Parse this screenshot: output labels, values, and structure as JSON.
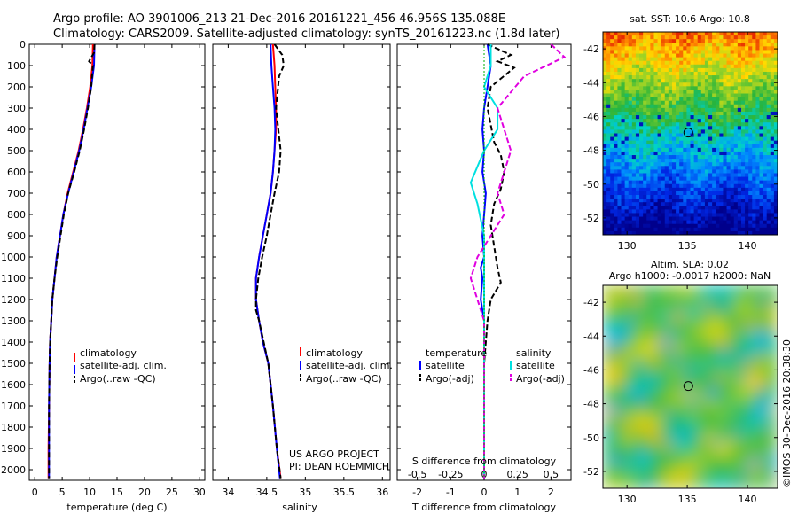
{
  "header": {
    "line1": "Argo profile: AO 3901006_213 21-Dec-2016 20161221_456 46.956S 135.088E",
    "line2": "Climatology: CARS2009. Satellite-adjusted climatology: synTS_20161223.nc (1.8d later)"
  },
  "credits": {
    "project": "US ARGO PROJECT",
    "pi": "PI: DEAN ROEMMICH",
    "vertical": "©IMOS 30-Dec-2016 20:38:30"
  },
  "colors": {
    "climatology": "#ff0000",
    "satellite": "#0000ff",
    "argo": "#000000",
    "sal_satellite": "#00e0e0",
    "sal_argo": "#e000e0"
  },
  "chart_data": [
    {
      "id": "temperature",
      "type": "line",
      "xlabel": "temperature (deg C)",
      "ylabel": "",
      "xlim": [
        -1,
        31
      ],
      "ylim": [
        2050,
        0
      ],
      "xticks": [
        "0",
        "5",
        "10",
        "15",
        "20",
        "25",
        "30"
      ],
      "yticks": [
        "0",
        "100",
        "200",
        "300",
        "400",
        "500",
        "600",
        "700",
        "800",
        "900",
        "1000",
        "1100",
        "1200",
        "1300",
        "1400",
        "1500",
        "1600",
        "1700",
        "1800",
        "1900",
        "2000"
      ],
      "legend": [
        "climatology",
        "satellite-adj. clim.",
        "Argo(..raw -QC)"
      ],
      "legend_position": "bottom-right",
      "series": [
        {
          "name": "climatology",
          "style": "solid",
          "color": "#ff0000",
          "x": [
            10.6,
            10.5,
            10.1,
            9.5,
            8.8,
            8.0,
            7.0,
            6.0,
            5.2,
            4.6,
            4.0,
            3.6,
            3.2,
            3.0,
            2.8,
            2.7,
            2.6,
            2.5,
            2.5
          ],
          "y": [
            0,
            100,
            200,
            300,
            400,
            500,
            600,
            700,
            800,
            900,
            1000,
            1100,
            1200,
            1300,
            1400,
            1500,
            1700,
            1900,
            2040
          ]
        },
        {
          "name": "satellite-adj. clim.",
          "style": "solid",
          "color": "#0000ff",
          "x": [
            10.9,
            10.8,
            10.3,
            9.6,
            8.9,
            8.1,
            7.1,
            6.1,
            5.2,
            4.6,
            4.0,
            3.6,
            3.2,
            3.0,
            2.8,
            2.7,
            2.6,
            2.6,
            2.6
          ],
          "y": [
            0,
            100,
            200,
            300,
            400,
            500,
            600,
            700,
            800,
            900,
            1000,
            1100,
            1200,
            1300,
            1400,
            1500,
            1700,
            1900,
            2040
          ]
        },
        {
          "name": "Argo(..raw -QC)",
          "style": "dashed",
          "color": "#000000",
          "x": [
            10.9,
            10.8,
            9.9,
            10.6,
            10.3,
            9.7,
            9.0,
            8.2,
            7.2,
            6.1,
            5.3,
            4.7,
            4.1,
            3.6,
            3.2,
            3.0,
            2.8,
            2.7,
            2.6,
            2.6,
            2.6
          ],
          "y": [
            0,
            40,
            80,
            100,
            200,
            300,
            400,
            500,
            600,
            700,
            800,
            900,
            1000,
            1100,
            1200,
            1300,
            1400,
            1500,
            1700,
            1900,
            2040
          ]
        }
      ]
    },
    {
      "id": "salinity",
      "type": "line",
      "xlabel": "salinity",
      "ylabel": "",
      "xlim": [
        33.8,
        36.1
      ],
      "ylim": [
        2050,
        0
      ],
      "xticks": [
        "34",
        "34.5",
        "35",
        "35.5",
        "36"
      ],
      "legend": [
        "climatology",
        "satellite-adj. clim.",
        "Argo(..raw -QC)"
      ],
      "legend_position": "bottom-right",
      "series": [
        {
          "name": "climatology",
          "style": "solid",
          "color": "#ff0000",
          "x": [
            34.58,
            34.6,
            34.61,
            34.62,
            34.62,
            34.6,
            34.58,
            34.55,
            34.5,
            34.45,
            34.4,
            34.36,
            34.36,
            34.4,
            34.45,
            34.52,
            34.58,
            34.63,
            34.68
          ],
          "y": [
            0,
            100,
            200,
            300,
            400,
            500,
            600,
            700,
            800,
            900,
            1000,
            1100,
            1200,
            1300,
            1400,
            1500,
            1700,
            1900,
            2040
          ]
        },
        {
          "name": "satellite-adj. clim.",
          "style": "solid",
          "color": "#0000ff",
          "x": [
            34.55,
            34.56,
            34.58,
            34.6,
            34.61,
            34.6,
            34.58,
            34.55,
            34.5,
            34.45,
            34.4,
            34.36,
            34.36,
            34.4,
            34.45,
            34.52,
            34.58,
            34.63,
            34.67
          ],
          "y": [
            0,
            100,
            200,
            300,
            400,
            500,
            600,
            700,
            800,
            900,
            1000,
            1100,
            1200,
            1300,
            1400,
            1500,
            1700,
            1900,
            2040
          ]
        },
        {
          "name": "Argo(..raw -QC)",
          "style": "dashed",
          "color": "#000000",
          "x": [
            34.6,
            34.7,
            34.72,
            34.66,
            34.62,
            34.68,
            34.66,
            34.6,
            34.55,
            34.5,
            34.44,
            34.39,
            34.36,
            34.36,
            34.4,
            34.46,
            34.52,
            34.58,
            34.63,
            34.68
          ],
          "y": [
            0,
            50,
            100,
            150,
            300,
            500,
            600,
            700,
            800,
            900,
            1000,
            1100,
            1200,
            1250,
            1300,
            1400,
            1500,
            1700,
            1900,
            2040
          ]
        }
      ]
    },
    {
      "id": "difference",
      "type": "line",
      "xlabel": "T difference from climatology",
      "xlabel_top": "S difference from climatology",
      "xlim": [
        -2.6,
        2.6
      ],
      "ylim": [
        2050,
        0
      ],
      "xticks": [
        "-2",
        "-1",
        "0",
        "1",
        "2"
      ],
      "xticks_top": [
        "-0.5",
        "-0.25",
        "0",
        "0.25",
        "0.5"
      ],
      "legend_headers": [
        "temperature",
        "salinity"
      ],
      "legend": [
        "satellite",
        "Argo(-adj)",
        "satellite",
        "Argo(-adj)"
      ],
      "series": [
        {
          "name": "satellite",
          "group": "temperature",
          "style": "solid",
          "color": "#0000ff",
          "x": [
            0.1,
            0.2,
            0.1,
            0.0,
            -0.05,
            0.0,
            -0.05,
            0.05,
            0.0,
            -0.05,
            0.0,
            -0.1,
            -0.05,
            -0.1,
            0.0,
            0.0,
            0.0,
            0.0
          ],
          "y": [
            0,
            100,
            200,
            300,
            400,
            500,
            600,
            700,
            800,
            900,
            1000,
            1050,
            1100,
            1200,
            1300,
            1500,
            1800,
            2040
          ]
        },
        {
          "name": "Argo(-adj)",
          "group": "temperature",
          "style": "dashed",
          "color": "#000000",
          "x": [
            0.1,
            0.8,
            0.4,
            0.9,
            0.2,
            0.1,
            0.3,
            0.5,
            0.6,
            0.5,
            0.3,
            0.2,
            0.4,
            0.5,
            0.2,
            0.1,
            0.0,
            0.0,
            0.0
          ],
          "y": [
            0,
            50,
            80,
            110,
            200,
            300,
            460,
            520,
            600,
            680,
            750,
            850,
            1050,
            1120,
            1200,
            1300,
            1500,
            1800,
            2040
          ]
        },
        {
          "name": "satellite",
          "group": "salinity",
          "style": "solid",
          "color": "#00e0e0",
          "x": [
            0.05,
            0.05,
            0.0,
            0.1,
            0.1,
            0.0,
            -0.1,
            -0.05,
            0.0,
            0.0,
            0.0,
            0.0,
            0.0,
            0.0
          ],
          "y": [
            0,
            100,
            200,
            300,
            400,
            500,
            650,
            750,
            900,
            1100,
            1300,
            1500,
            1800,
            2040
          ]
        },
        {
          "name": "Argo(-adj)",
          "group": "salinity",
          "style": "dashed",
          "color": "#e000e0",
          "x": [
            0.5,
            0.6,
            0.3,
            0.1,
            0.2,
            0.1,
            0.15,
            0.0,
            -0.05,
            -0.1,
            0.0,
            0.0,
            0.0
          ],
          "y": [
            0,
            60,
            150,
            300,
            500,
            700,
            800,
            950,
            1000,
            1100,
            1300,
            1600,
            2040
          ]
        }
      ]
    },
    {
      "id": "sst-map",
      "type": "heatmap",
      "title": "sat. SST: 10.6 Argo: 10.8",
      "xlim": [
        128,
        142.5
      ],
      "ylim": [
        -53,
        -41
      ],
      "xticks": [
        "130",
        "135",
        "140"
      ],
      "yticks": [
        "-42",
        "-44",
        "-46",
        "-48",
        "-50",
        "-52"
      ],
      "marker": {
        "lon": 135.088,
        "lat": -46.956
      }
    },
    {
      "id": "sla-map",
      "type": "heatmap",
      "title": "Altim. SLA: 0.02",
      "subtitle": "Argo h1000: -0.0017 h2000: NaN",
      "xlim": [
        128,
        142.5
      ],
      "ylim": [
        -53,
        -41
      ],
      "xticks": [
        "130",
        "135",
        "140"
      ],
      "yticks": [
        "-42",
        "-44",
        "-46",
        "-48",
        "-50",
        "-52"
      ],
      "marker": {
        "lon": 135.088,
        "lat": -46.956
      }
    }
  ]
}
